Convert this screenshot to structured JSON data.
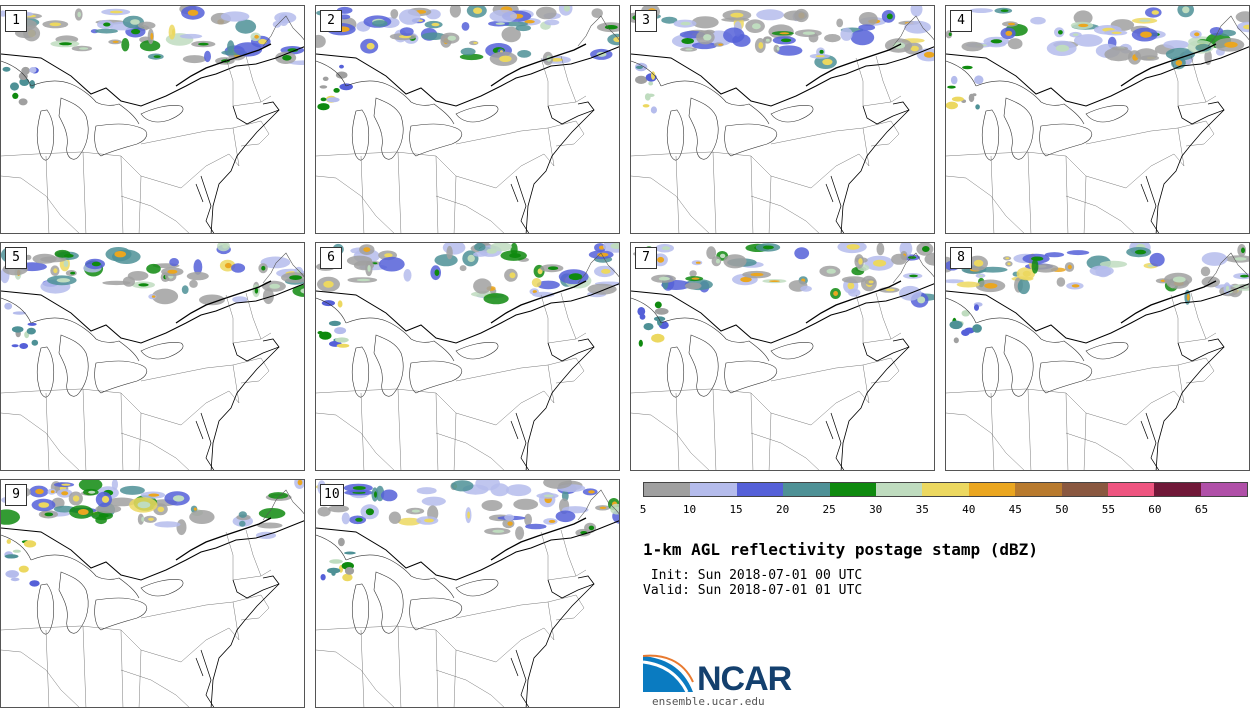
{
  "panels": [
    {
      "label": "1",
      "seed": 11
    },
    {
      "label": "2",
      "seed": 23
    },
    {
      "label": "3",
      "seed": 37
    },
    {
      "label": "4",
      "seed": 41
    },
    {
      "label": "5",
      "seed": 53
    },
    {
      "label": "6",
      "seed": 67
    },
    {
      "label": "7",
      "seed": 71
    },
    {
      "label": "8",
      "seed": 83
    },
    {
      "label": "9",
      "seed": 97
    },
    {
      "label": "10",
      "seed": 101
    }
  ],
  "colorbar": {
    "colors": [
      "#a0a0a0",
      "#b5bcec",
      "#5560d8",
      "#4e9196",
      "#0f8a0f",
      "#bfdcbf",
      "#ecd860",
      "#eaa620",
      "#b87a2e",
      "#8a5840",
      "#ee5580",
      "#701838",
      "#b050a8"
    ],
    "ticks": [
      "5",
      "10",
      "15",
      "20",
      "25",
      "30",
      "35",
      "40",
      "45",
      "50",
      "55",
      "60",
      "65"
    ]
  },
  "title": "1-km AGL reflectivity postage stamp (dBZ)",
  "init": " Init: Sun 2018-07-01 00 UTC",
  "valid": "Valid: Sun 2018-07-01 01 UTC",
  "logo": {
    "text": "NCAR",
    "url": "ensemble.ucar.edu",
    "colors": {
      "blue": "#0a7bc1",
      "dark": "#14406e"
    }
  }
}
